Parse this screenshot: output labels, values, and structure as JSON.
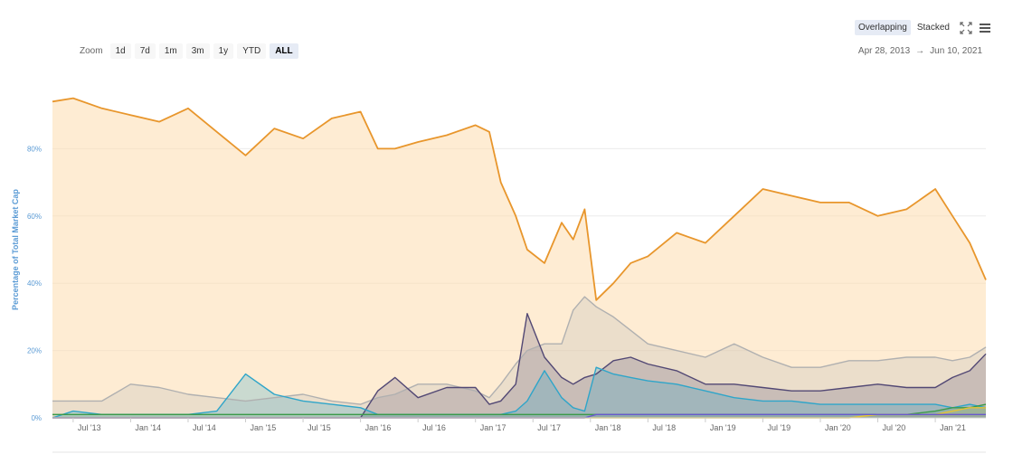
{
  "toolbar": {
    "zoom_label": "Zoom",
    "zoom_buttons": [
      "1d",
      "7d",
      "1m",
      "3m",
      "1y",
      "YTD",
      "ALL"
    ],
    "active_zoom": "ALL",
    "mode_overlapping": "Overlapping",
    "mode_stacked": "Stacked",
    "range_start": "Apr 28, 2013",
    "range_arrow": "→",
    "range_end": "Jun 10, 2021"
  },
  "chart_data": {
    "type": "area",
    "ylabel": "Percentage of Total Market Cap",
    "ylim": [
      0,
      100
    ],
    "y_ticks": [
      "0%",
      "20%",
      "40%",
      "60%",
      "80%"
    ],
    "x_ticks": [
      "Jul '13",
      "Jan '14",
      "Jul '14",
      "Jan '15",
      "Jul '15",
      "Jan '16",
      "Jul '16",
      "Jan '17",
      "Jul '17",
      "Jan '18",
      "Jul '18",
      "Jan '19",
      "Jul '19",
      "Jan '20",
      "Jul '20",
      "Jan '21"
    ],
    "x": [
      2013.32,
      2013.5,
      2013.75,
      2014.0,
      2014.25,
      2014.5,
      2014.75,
      2015.0,
      2015.25,
      2015.5,
      2015.75,
      2016.0,
      2016.15,
      2016.3,
      2016.5,
      2016.75,
      2017.0,
      2017.12,
      2017.22,
      2017.35,
      2017.45,
      2017.6,
      2017.75,
      2017.85,
      2017.95,
      2018.05,
      2018.2,
      2018.35,
      2018.5,
      2018.75,
      2019.0,
      2019.25,
      2019.5,
      2019.75,
      2020.0,
      2020.25,
      2020.5,
      2020.75,
      2021.0,
      2021.15,
      2021.3,
      2021.44
    ],
    "series": [
      {
        "color": "#e8962c",
        "fill": "rgba(253,221,175,0.55)",
        "values": [
          94,
          95,
          92,
          90,
          88,
          92,
          85,
          78,
          86,
          83,
          89,
          91,
          80,
          80,
          82,
          84,
          87,
          85,
          70,
          60,
          50,
          46,
          58,
          53,
          62,
          35,
          40,
          46,
          48,
          55,
          52,
          60,
          68,
          66,
          64,
          64,
          60,
          62,
          68,
          60,
          52,
          41
        ]
      },
      {
        "color": "#b0b0b0",
        "fill": "rgba(180,180,180,0.25)",
        "values": [
          5,
          5,
          5,
          10,
          9,
          7,
          6,
          5,
          6,
          7,
          5,
          4,
          6,
          7,
          10,
          10,
          8,
          6,
          10,
          16,
          20,
          22,
          22,
          32,
          36,
          33,
          30,
          26,
          22,
          20,
          18,
          22,
          18,
          15,
          15,
          17,
          17,
          18,
          18,
          17,
          18,
          21
        ]
      },
      {
        "color": "#524874",
        "fill": "rgba(82,72,116,0.22)",
        "values": [
          0,
          0,
          0,
          0,
          0,
          0,
          0,
          0,
          0,
          0,
          0,
          0,
          8,
          12,
          6,
          9,
          9,
          4,
          5,
          10,
          31,
          18,
          12,
          10,
          12,
          13,
          17,
          18,
          16,
          14,
          10,
          10,
          9,
          8,
          8,
          9,
          10,
          9,
          9,
          12,
          14,
          19
        ]
      },
      {
        "color": "#2fa5c9",
        "fill": "rgba(47,165,201,0.25)",
        "values": [
          0,
          2,
          1,
          1,
          1,
          1,
          2,
          13,
          7,
          5,
          4,
          3,
          1,
          1,
          1,
          1,
          1,
          1,
          1,
          2,
          5,
          14,
          6,
          3,
          2,
          15,
          13,
          12,
          11,
          10,
          8,
          6,
          5,
          5,
          4,
          4,
          4,
          4,
          4,
          3,
          4,
          3
        ]
      },
      {
        "color": "#3c9a4a",
        "fill": "rgba(60,154,74,0.15)",
        "values": [
          1,
          1,
          1,
          1,
          1,
          1,
          1,
          1,
          1,
          1,
          1,
          1,
          1,
          1,
          1,
          1,
          1,
          1,
          1,
          1,
          1,
          1,
          1,
          1,
          1,
          1,
          1,
          1,
          1,
          1,
          1,
          1,
          1,
          1,
          1,
          1,
          1,
          1,
          2,
          3,
          3,
          4
        ]
      },
      {
        "color": "#e5c234",
        "fill": "rgba(229,194,52,0.15)",
        "values": [
          0,
          0,
          0,
          0,
          0,
          0,
          0,
          0,
          0,
          0,
          0,
          0,
          0,
          0,
          0,
          0,
          0,
          0,
          0,
          0,
          0,
          0,
          0,
          0,
          0,
          0,
          0,
          0,
          0,
          0,
          0,
          0,
          0,
          0,
          0,
          0,
          1,
          1,
          1,
          2,
          3,
          3
        ]
      },
      {
        "color": "#6a5acd",
        "fill": "rgba(106,90,205,0.1)",
        "values": [
          0,
          0,
          0,
          0,
          0,
          0,
          0,
          0,
          0,
          0,
          0,
          0,
          0,
          0,
          0,
          0,
          0,
          0,
          0,
          0,
          0,
          0,
          0,
          0,
          0,
          1,
          1,
          1,
          1,
          1,
          1,
          1,
          1,
          1,
          1,
          1,
          1,
          1,
          1,
          1,
          1,
          1
        ]
      }
    ]
  }
}
